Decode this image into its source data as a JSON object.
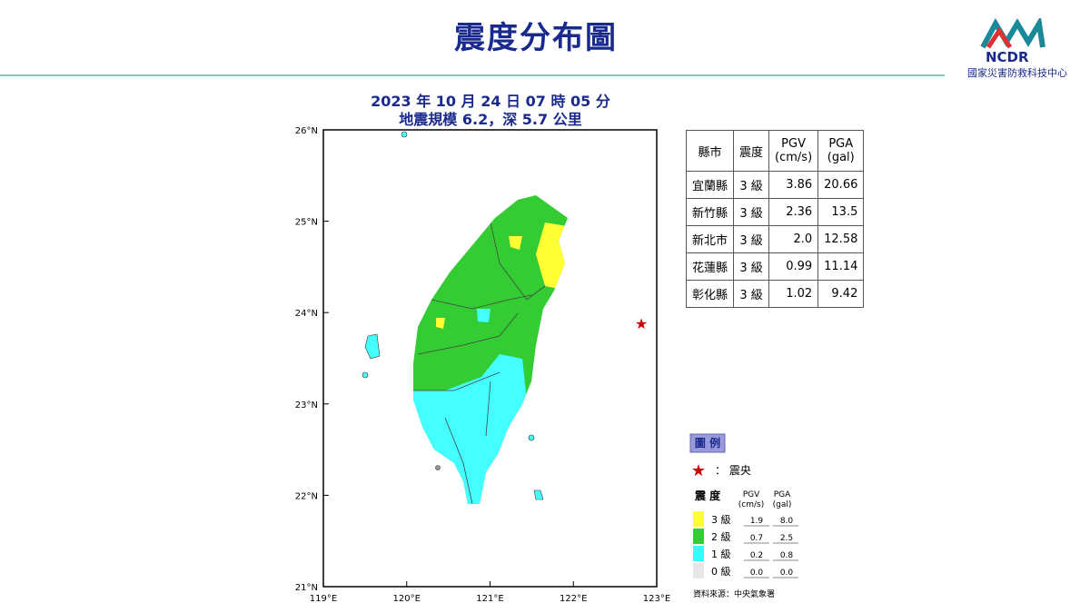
{
  "header": {
    "title": "震度分布圖",
    "logo": "NCDR",
    "organization": "國家災害防救科技中心"
  },
  "map": {
    "title_lines": [
      "2023 年 10 月 24 日 07 時 05 分",
      "地震規模 6.2，深 5.7 公里"
    ],
    "lat_labels": [
      "26°N",
      "25°N",
      "24°N",
      "23°N",
      "22°N",
      "21°N"
    ],
    "lon_labels": [
      "119°E",
      "120°E",
      "121°E",
      "122°E",
      "123°E"
    ]
  },
  "table": {
    "header": [
      "縣市",
      "震度",
      "PGV\n(cm/s)",
      "PGA\n(gal)"
    ],
    "rows": [
      [
        "宜蘭縣",
        "3 級",
        "3.86",
        "20.66"
      ],
      [
        "新竹縣",
        "3 級",
        "2.36",
        "13.5"
      ],
      [
        "新北市",
        "3 級",
        "2.0",
        "12.58"
      ],
      [
        "花蓮縣",
        "3 級",
        "0.99",
        "11.14"
      ],
      [
        "彰化縣",
        "3 級",
        "1.02",
        "9.42"
      ]
    ]
  },
  "legend": {
    "title": "圖 例",
    "epicenter_symbol": "★",
    "epicenter_label": "： 震央",
    "header": [
      "震 度",
      "PGV\n(cm/s)",
      "PGA\n(gal)"
    ],
    "rows": [
      {
        "level": "3 級",
        "pgv": "1.9",
        "pga": "8.0",
        "color": "#ffff33"
      },
      {
        "level": "2 級",
        "pgv": "0.7",
        "pga": "2.5",
        "color": "#33cc33"
      },
      {
        "level": "1 級",
        "pgv": "0.2",
        "pga": "0.8",
        "color": "#33ffff"
      },
      {
        "level": "0 級",
        "pgv": "0.0",
        "pga": "0.0",
        "color": "#e6e6e6"
      }
    ],
    "source": "資料來源：中央氣象署"
  }
}
